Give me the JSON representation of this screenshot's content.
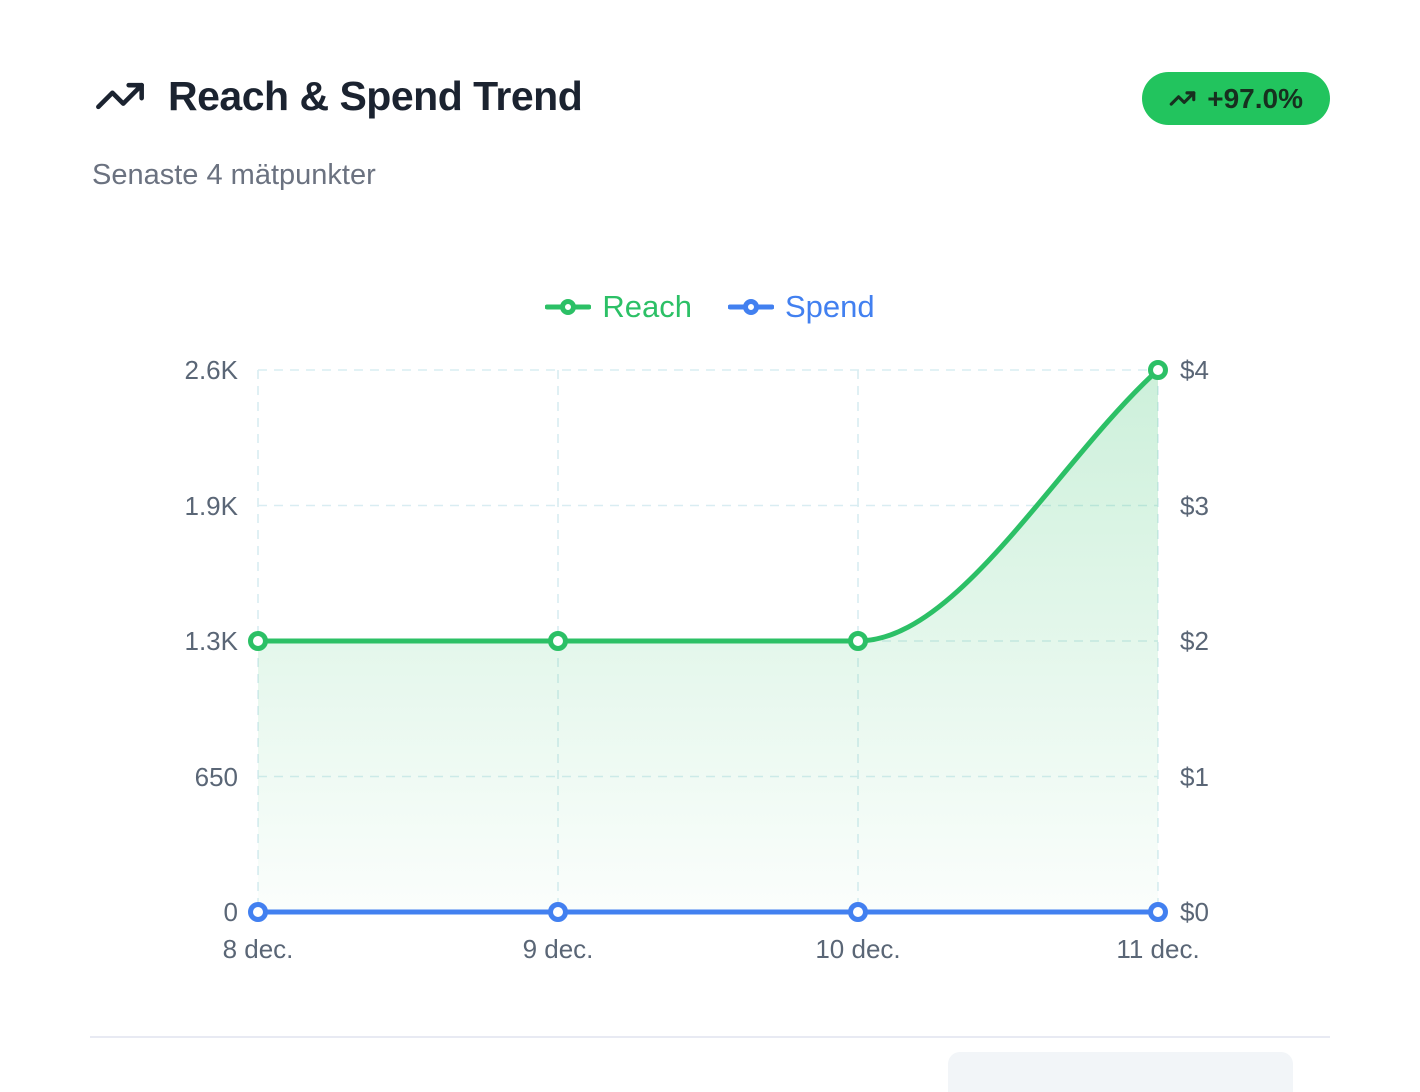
{
  "header": {
    "title": "Reach & Spend Trend",
    "subtitle": "Senaste 4 mätpunkter",
    "badge": {
      "label": "+97.0%",
      "bg": "#22c45e",
      "text_color": "#17301f"
    }
  },
  "chart_data": {
    "type": "line",
    "categories": [
      "8 dec.",
      "9 dec.",
      "10 dec.",
      "11 dec."
    ],
    "series": [
      {
        "name": "Reach",
        "axis": "left",
        "color": "#2cc066",
        "values": [
          1300,
          1300,
          1300,
          2600
        ],
        "area": true,
        "smooth": true
      },
      {
        "name": "Spend",
        "axis": "right",
        "color": "#4280f0",
        "values": [
          0,
          0,
          0,
          0
        ],
        "area": false,
        "smooth": true
      }
    ],
    "left_axis": {
      "ticks": [
        0,
        650,
        1300,
        1950,
        2600
      ],
      "labels": [
        "0",
        "650",
        "1.3K",
        "1.9K",
        "2.6K"
      ],
      "max": 2600
    },
    "right_axis": {
      "ticks": [
        0,
        1,
        2,
        3,
        4
      ],
      "labels": [
        "$0",
        "$1",
        "$2",
        "$3",
        "$4"
      ],
      "max": 4
    },
    "grid": true,
    "grid_color": "#d9edf2",
    "legend_position": "top-center"
  }
}
